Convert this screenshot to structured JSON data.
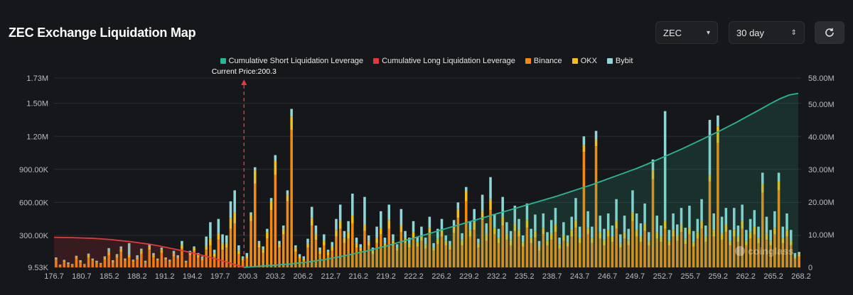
{
  "header": {
    "title": "ZEC Exchange Liquidation Map"
  },
  "controls": {
    "symbol": "ZEC",
    "range": "30 day"
  },
  "colors": {
    "short": "#2bb596",
    "long": "#e03a3a",
    "binance": "#f08a10",
    "okx": "#f0c020",
    "bybit": "#8fd6d6",
    "grid": "#2a2d33",
    "axis_text": "#b9bcc4"
  },
  "legend": [
    {
      "label": "Cumulative Short Liquidation Leverage",
      "color": "#2bb596"
    },
    {
      "label": "Cumulative Long Liquidation Leverage",
      "color": "#e03a3a"
    },
    {
      "label": "Binance",
      "color": "#f08a10"
    },
    {
      "label": "OKX",
      "color": "#f0c020"
    },
    {
      "label": "Bybit",
      "color": "#8fd6d6"
    }
  ],
  "watermark": "coinglass",
  "chart_data": {
    "type": "bar",
    "current_price_label": "Current Price:200.3",
    "current_price": 200.3,
    "x_ticks": [
      "176.7",
      "180.7",
      "185.2",
      "188.2",
      "191.2",
      "194.2",
      "197.7",
      "200.3",
      "203.2",
      "206.2",
      "212.7",
      "216.2",
      "219.2",
      "222.2",
      "226.2",
      "229.2",
      "232.2",
      "235.2",
      "238.7",
      "243.7",
      "246.7",
      "249.7",
      "252.7",
      "255.7",
      "259.2",
      "262.2",
      "265.2",
      "268.2"
    ],
    "y_left_ticks": [
      "9.53K",
      "300.00K",
      "600.00K",
      "900.00K",
      "1.20M",
      "1.50M",
      "1.73M"
    ],
    "y_left_values": [
      9530,
      300000,
      600000,
      900000,
      1200000,
      1500000,
      1730000
    ],
    "y_right_ticks": [
      "0",
      "10.00M",
      "20.00M",
      "30.00M",
      "40.00M",
      "50.00M",
      "58.00M"
    ],
    "y_right_values": [
      0,
      10000000,
      20000000,
      30000000,
      40000000,
      50000000,
      58000000
    ],
    "x_range": [
      176.7,
      269.5
    ],
    "series_note": "Stacked bars per price level: Binance + OKX + Bybit (USD). Cumulative lines on right axis.",
    "bars": [
      [
        70000,
        10000,
        10000
      ],
      [
        15000,
        5000,
        5000
      ],
      [
        50000,
        10000,
        8000
      ],
      [
        30000,
        8000,
        7000
      ],
      [
        20000,
        5000,
        5000
      ],
      [
        80000,
        15000,
        10000
      ],
      [
        45000,
        10000,
        10000
      ],
      [
        20000,
        5000,
        5000
      ],
      [
        90000,
        20000,
        15000
      ],
      [
        60000,
        10000,
        10000
      ],
      [
        40000,
        10000,
        10000
      ],
      [
        30000,
        5000,
        5000
      ],
      [
        70000,
        15000,
        15000
      ],
      [
        110000,
        30000,
        35000
      ],
      [
        45000,
        10000,
        10000
      ],
      [
        90000,
        15000,
        15000
      ],
      [
        140000,
        30000,
        20000
      ],
      [
        60000,
        10000,
        10000
      ],
      [
        90000,
        20000,
        110000
      ],
      [
        50000,
        10000,
        10000
      ],
      [
        70000,
        20000,
        20000
      ],
      [
        120000,
        30000,
        20000
      ],
      [
        40000,
        10000,
        10000
      ],
      [
        160000,
        30000,
        20000
      ],
      [
        90000,
        20000,
        20000
      ],
      [
        60000,
        10000,
        10000
      ],
      [
        130000,
        30000,
        20000
      ],
      [
        70000,
        10000,
        10000
      ],
      [
        50000,
        10000,
        10000
      ],
      [
        100000,
        20000,
        30000
      ],
      [
        80000,
        10000,
        20000
      ],
      [
        170000,
        30000,
        40000
      ],
      [
        40000,
        10000,
        10000
      ],
      [
        110000,
        20000,
        20000
      ],
      [
        150000,
        30000,
        10000
      ],
      [
        90000,
        20000,
        20000
      ],
      [
        60000,
        20000,
        20000
      ],
      [
        160000,
        30000,
        90000
      ],
      [
        200000,
        60000,
        150000
      ],
      [
        100000,
        30000,
        30000
      ],
      [
        250000,
        60000,
        130000
      ],
      [
        160000,
        60000,
        80000
      ],
      [
        180000,
        40000,
        70000
      ],
      [
        350000,
        100000,
        150000
      ],
      [
        400000,
        100000,
        200000
      ],
      [
        120000,
        30000,
        50000
      ],
      [
        60000,
        20000,
        20000
      ],
      [
        80000,
        20000,
        30000
      ],
      [
        420000,
        60000,
        20000
      ],
      [
        760000,
        120000,
        30000
      ],
      [
        180000,
        40000,
        20000
      ],
      [
        130000,
        30000,
        30000
      ],
      [
        260000,
        60000,
        30000
      ],
      [
        520000,
        80000,
        30000
      ],
      [
        840000,
        130000,
        50000
      ],
      [
        180000,
        30000,
        30000
      ],
      [
        300000,
        50000,
        30000
      ],
      [
        600000,
        60000,
        40000
      ],
      [
        1250000,
        120000,
        70000
      ],
      [
        140000,
        40000,
        20000
      ],
      [
        80000,
        20000,
        20000
      ],
      [
        60000,
        20000,
        20000
      ],
      [
        180000,
        40000,
        40000
      ],
      [
        380000,
        70000,
        100000
      ],
      [
        250000,
        50000,
        80000
      ],
      [
        120000,
        30000,
        30000
      ],
      [
        200000,
        40000,
        60000
      ],
      [
        110000,
        30000,
        20000
      ],
      [
        150000,
        40000,
        40000
      ],
      [
        280000,
        60000,
        100000
      ],
      [
        350000,
        70000,
        150000
      ],
      [
        220000,
        50000,
        60000
      ],
      [
        260000,
        60000,
        100000
      ],
      [
        400000,
        70000,
        200000
      ],
      [
        180000,
        40000,
        50000
      ],
      [
        150000,
        30000,
        30000
      ],
      [
        330000,
        60000,
        250000
      ],
      [
        200000,
        40000,
        50000
      ],
      [
        120000,
        30000,
        30000
      ],
      [
        220000,
        50000,
        100000
      ],
      [
        300000,
        60000,
        150000
      ],
      [
        180000,
        40000,
        50000
      ],
      [
        350000,
        80000,
        140000
      ],
      [
        200000,
        40000,
        60000
      ],
      [
        150000,
        30000,
        30000
      ],
      [
        320000,
        60000,
        150000
      ],
      [
        220000,
        50000,
        60000
      ],
      [
        180000,
        40000,
        50000
      ],
      [
        260000,
        60000,
        100000
      ],
      [
        190000,
        40000,
        50000
      ],
      [
        240000,
        50000,
        80000
      ],
      [
        170000,
        40000,
        60000
      ],
      [
        300000,
        60000,
        100000
      ],
      [
        150000,
        30000,
        40000
      ],
      [
        210000,
        50000,
        90000
      ],
      [
        280000,
        60000,
        100000
      ],
      [
        200000,
        40000,
        50000
      ],
      [
        160000,
        40000,
        40000
      ],
      [
        310000,
        60000,
        60000
      ],
      [
        450000,
        80000,
        60000
      ],
      [
        200000,
        50000,
        60000
      ],
      [
        600000,
        90000,
        40000
      ],
      [
        280000,
        60000,
        80000
      ],
      [
        340000,
        70000,
        120000
      ],
      [
        180000,
        40000,
        40000
      ],
      [
        430000,
        80000,
        150000
      ],
      [
        240000,
        60000,
        100000
      ],
      [
        520000,
        100000,
        200000
      ],
      [
        300000,
        60000,
        120000
      ],
      [
        220000,
        50000,
        80000
      ],
      [
        380000,
        80000,
        180000
      ],
      [
        250000,
        60000,
        100000
      ],
      [
        200000,
        50000,
        80000
      ],
      [
        330000,
        70000,
        160000
      ],
      [
        280000,
        60000,
        100000
      ],
      [
        190000,
        40000,
        60000
      ],
      [
        360000,
        70000,
        150000
      ],
      [
        220000,
        50000,
        80000
      ],
      [
        270000,
        60000,
        150000
      ],
      [
        150000,
        40000,
        50000
      ],
      [
        300000,
        60000,
        130000
      ],
      [
        200000,
        40000,
        80000
      ],
      [
        250000,
        60000,
        120000
      ],
      [
        320000,
        70000,
        150000
      ],
      [
        170000,
        40000,
        60000
      ],
      [
        240000,
        50000,
        120000
      ],
      [
        190000,
        40000,
        60000
      ],
      [
        280000,
        60000,
        120000
      ],
      [
        360000,
        70000,
        200000
      ],
      [
        220000,
        50000,
        100000
      ],
      [
        1050000,
        60000,
        80000
      ],
      [
        300000,
        60000,
        150000
      ],
      [
        220000,
        50000,
        100000
      ],
      [
        1100000,
        60000,
        80000
      ],
      [
        260000,
        60000,
        150000
      ],
      [
        200000,
        50000,
        100000
      ],
      [
        280000,
        60000,
        150000
      ],
      [
        230000,
        50000,
        100000
      ],
      [
        350000,
        70000,
        200000
      ],
      [
        180000,
        40000,
        80000
      ],
      [
        260000,
        60000,
        150000
      ],
      [
        200000,
        50000,
        100000
      ],
      [
        420000,
        80000,
        200000
      ],
      [
        280000,
        60000,
        150000
      ],
      [
        230000,
        50000,
        120000
      ],
      [
        330000,
        70000,
        180000
      ],
      [
        200000,
        40000,
        80000
      ],
      [
        800000,
        80000,
        100000
      ],
      [
        260000,
        60000,
        150000
      ],
      [
        230000,
        50000,
        100000
      ],
      [
        350000,
        70000,
        1000000
      ],
      [
        200000,
        40000,
        100000
      ],
      [
        280000,
        60000,
        150000
      ],
      [
        240000,
        50000,
        100000
      ],
      [
        320000,
        70000,
        150000
      ],
      [
        210000,
        50000,
        100000
      ],
      [
        300000,
        60000,
        200000
      ],
      [
        190000,
        40000,
        100000
      ],
      [
        260000,
        60000,
        120000
      ],
      [
        350000,
        70000,
        200000
      ],
      [
        230000,
        50000,
        100000
      ],
      [
        780000,
        60000,
        500000
      ],
      [
        280000,
        60000,
        150000
      ],
      [
        1130000,
        150000,
        100000
      ],
      [
        250000,
        60000,
        150000
      ],
      [
        320000,
        70000,
        150000
      ],
      [
        200000,
        40000,
        100000
      ],
      [
        280000,
        60000,
        200000
      ],
      [
        230000,
        50000,
        100000
      ],
      [
        350000,
        70000,
        150000
      ],
      [
        200000,
        40000,
        100000
      ],
      [
        260000,
        60000,
        120000
      ],
      [
        300000,
        70000,
        150000
      ],
      [
        220000,
        50000,
        100000
      ],
      [
        680000,
        80000,
        100000
      ],
      [
        250000,
        60000,
        150000
      ],
      [
        200000,
        40000,
        100000
      ],
      [
        300000,
        60000,
        150000
      ],
      [
        700000,
        80000,
        80000
      ],
      [
        220000,
        50000,
        100000
      ],
      [
        280000,
        60000,
        150000
      ],
      [
        200000,
        40000,
        100000
      ],
      [
        80000,
        20000,
        30000
      ],
      [
        100000,
        20000,
        20000
      ]
    ],
    "short_cumulative_M": [
      0,
      0.2,
      0.4,
      0.6,
      0.8,
      1,
      1.3,
      1.6,
      2,
      2.4,
      2.9,
      3.4,
      4,
      4.6,
      5.2,
      5.9,
      6.6,
      7.4,
      8.2,
      9,
      9.8,
      10.6,
      11.4,
      12.2,
      13,
      13.8,
      14.6,
      15.4,
      16.2,
      17,
      17.8,
      18.6,
      19.4,
      20.2,
      21,
      21.8,
      22.7,
      23.6,
      24.5,
      25.4,
      26.4,
      27.4,
      28.4,
      29.4,
      30.4,
      31.5,
      32.7,
      33.9,
      35.1,
      36.3,
      37.6,
      38.9,
      40.2,
      41.5,
      42.9,
      44.3,
      45.8,
      47.3,
      48.8,
      50.3,
      51.7,
      52.8,
      53.3
    ],
    "long_cumulative_M": [
      9.2,
      9.15,
      9.1,
      9.0,
      8.9,
      8.7,
      8.5,
      8.2,
      7.9,
      7.5,
      7.1,
      6.6,
      6.0,
      5.4,
      4.8,
      4.1,
      3.4,
      2.6,
      1.8,
      0.9,
      0
    ]
  }
}
